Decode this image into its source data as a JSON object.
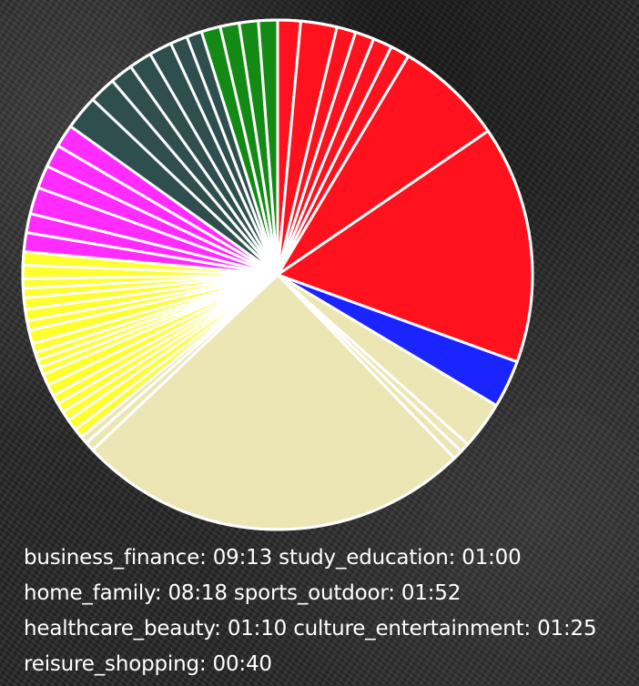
{
  "chart_data": {
    "type": "pie",
    "title": "",
    "legend_position": "bottom",
    "legend_entries": [
      {
        "label": "business_finance",
        "value": "09:13"
      },
      {
        "label": "study_education",
        "value": "01:00"
      },
      {
        "label": "home_family",
        "value": "08:18"
      },
      {
        "label": "sports_outdoor",
        "value": "01:52"
      },
      {
        "label": "healthcare_beauty",
        "value": "01:10"
      },
      {
        "label": "culture_entertainment",
        "value": "01:25"
      },
      {
        "label": "reisure_shopping",
        "value": "00:40"
      }
    ],
    "colors": {
      "business_finance": "#ff121e",
      "study_education": "#1a24ff",
      "home_family": "#ece5b4",
      "sports_outdoor": "#ffff2e",
      "healthcare_beauty": "#ff2bff",
      "culture_entertainment": "#2f4f4f",
      "reisure_shopping": "#138a13"
    },
    "slices": [
      {
        "category": "business_finance",
        "minutes": 12
      },
      {
        "category": "business_finance",
        "minutes": 19
      },
      {
        "category": "business_finance",
        "minutes": 10
      },
      {
        "category": "business_finance",
        "minutes": 10
      },
      {
        "category": "business_finance",
        "minutes": 10
      },
      {
        "category": "business_finance",
        "minutes": 10
      },
      {
        "category": "business_finance",
        "minutes": 57
      },
      {
        "category": "business_finance",
        "minutes": 125
      },
      {
        "category": "study_education",
        "minutes": 25
      },
      {
        "category": "home_family",
        "minutes": 25
      },
      {
        "category": "home_family",
        "minutes": 5
      },
      {
        "category": "home_family",
        "minutes": 5
      },
      {
        "category": "home_family",
        "minutes": 208
      },
      {
        "category": "home_family",
        "minutes": 5
      },
      {
        "category": "home_family",
        "minutes": 4
      },
      {
        "category": "sports_outdoor",
        "minutes": 5
      },
      {
        "category": "sports_outdoor",
        "minutes": 6
      },
      {
        "category": "sports_outdoor",
        "minutes": 5
      },
      {
        "category": "sports_outdoor",
        "minutes": 5
      },
      {
        "category": "sports_outdoor",
        "minutes": 5
      },
      {
        "category": "sports_outdoor",
        "minutes": 6
      },
      {
        "category": "sports_outdoor",
        "minutes": 6
      },
      {
        "category": "sports_outdoor",
        "minutes": 4
      },
      {
        "category": "sports_outdoor",
        "minutes": 4
      },
      {
        "category": "sports_outdoor",
        "minutes": 4
      },
      {
        "category": "sports_outdoor",
        "minutes": 5
      },
      {
        "category": "sports_outdoor",
        "minutes": 7
      },
      {
        "category": "sports_outdoor",
        "minutes": 5
      },
      {
        "category": "sports_outdoor",
        "minutes": 6
      },
      {
        "category": "sports_outdoor",
        "minutes": 6
      },
      {
        "category": "sports_outdoor",
        "minutes": 5
      },
      {
        "category": "sports_outdoor",
        "minutes": 5
      },
      {
        "category": "sports_outdoor",
        "minutes": 7
      },
      {
        "category": "sports_outdoor",
        "minutes": 7
      },
      {
        "category": "healthcare_beauty",
        "minutes": 10
      },
      {
        "category": "healthcare_beauty",
        "minutes": 10
      },
      {
        "category": "healthcare_beauty",
        "minutes": 14
      },
      {
        "category": "healthcare_beauty",
        "minutes": 12
      },
      {
        "category": "healthcare_beauty",
        "minutes": 12
      },
      {
        "category": "healthcare_beauty",
        "minutes": 12
      },
      {
        "category": "culture_entertainment",
        "minutes": 18
      },
      {
        "category": "culture_entertainment",
        "minutes": 14
      },
      {
        "category": "culture_entertainment",
        "minutes": 12
      },
      {
        "category": "culture_entertainment",
        "minutes": 12
      },
      {
        "category": "culture_entertainment",
        "minutes": 12
      },
      {
        "category": "culture_entertainment",
        "minutes": 9
      },
      {
        "category": "culture_entertainment",
        "minutes": 8
      },
      {
        "category": "reisure_shopping",
        "minutes": 10
      },
      {
        "category": "reisure_shopping",
        "minutes": 10
      },
      {
        "category": "reisure_shopping",
        "minutes": 10
      },
      {
        "category": "reisure_shopping",
        "minutes": 10
      }
    ],
    "hidden_slices_note_omitted": true
  }
}
